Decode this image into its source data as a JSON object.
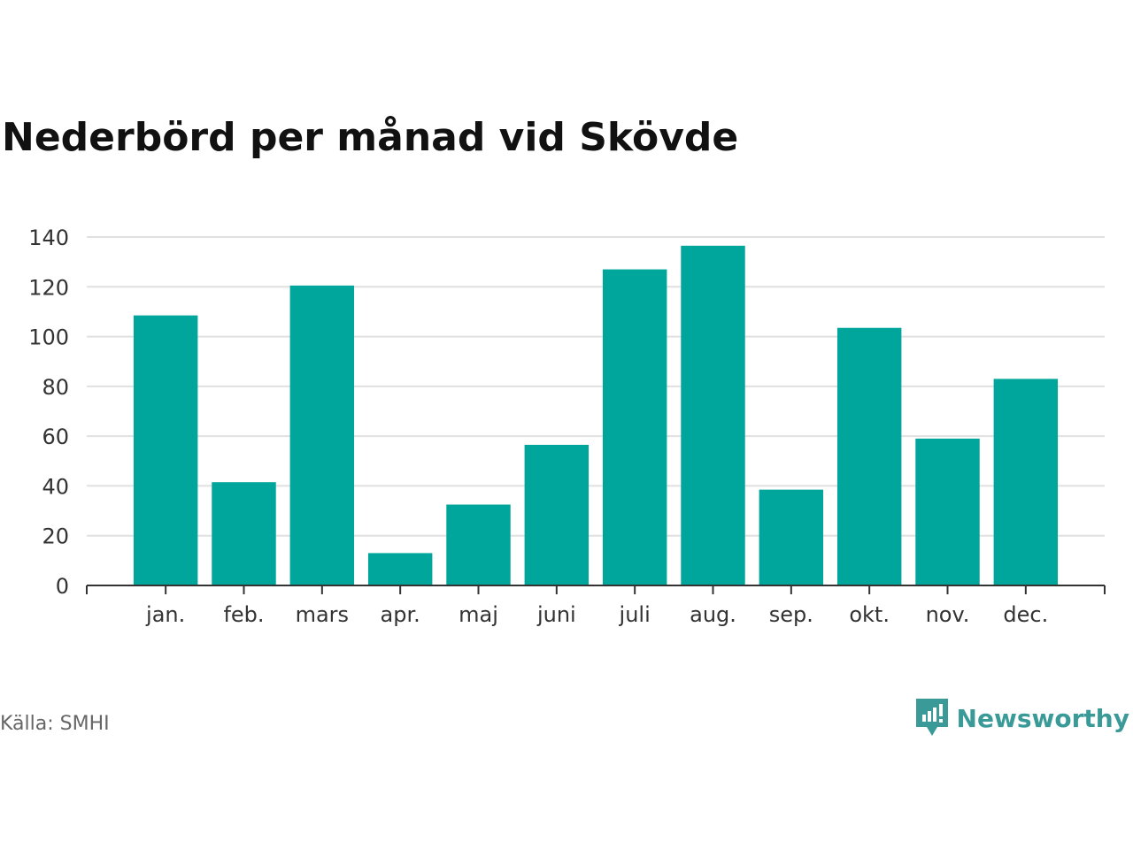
{
  "title": "Nederbörd per månad vid Skövde",
  "source": "Källa: SMHI",
  "brand": {
    "name": "Newsworthy",
    "icon": "newsworthy-logo-icon",
    "color": "#3a9a98"
  },
  "chart_data": {
    "type": "bar",
    "title": "Nederbörd per månad vid Skövde",
    "xlabel": "",
    "ylabel": "",
    "categories": [
      "jan.",
      "feb.",
      "mars",
      "apr.",
      "maj",
      "juni",
      "juli",
      "aug.",
      "sep.",
      "okt.",
      "nov.",
      "dec."
    ],
    "values": [
      108.5,
      41.5,
      120.5,
      13,
      32.5,
      56.5,
      127,
      136.5,
      38.5,
      103.5,
      59,
      83
    ],
    "ylim": [
      0,
      140
    ],
    "yticks": [
      0,
      20,
      40,
      60,
      80,
      100,
      120,
      140
    ],
    "grid": true,
    "legend": "none",
    "bar_color": "#00a59b"
  }
}
